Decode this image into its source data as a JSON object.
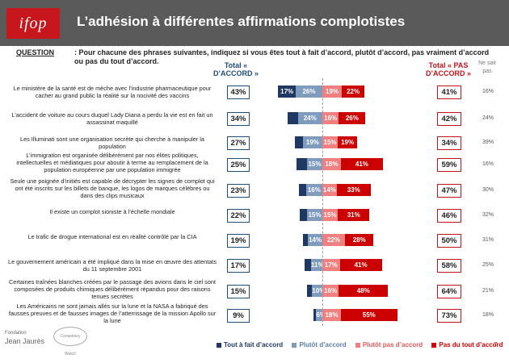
{
  "header": {
    "logo": "ifop",
    "title": "L’adhésion à différentes affirmations complotistes"
  },
  "question": {
    "label": "QUESTION",
    "text": ": Pour chacune des phrases suivantes, indiquez si vous êtes tout à fait d’accord, plutôt d’accord, pas vraiment d’accord ou pas du tout d’accord."
  },
  "columns": {
    "total_accord": "Total « D’ACCORD »",
    "total_pas": "Total « PAS D’ACCORD »",
    "nsp": "Ne sait pas"
  },
  "colors": {
    "tout_accord": "#1f3864",
    "plutot_accord": "#7f9bbd",
    "plutot_pas": "#f08080",
    "pas_du_tout": "#cc0000"
  },
  "chart_data": {
    "type": "bar",
    "orientation": "horizontal-diverging",
    "series": [
      {
        "name": "Tout à fait d’accord",
        "values": [
          17,
          10,
          8,
          10,
          7,
          7,
          5,
          6,
          5,
          3
        ]
      },
      {
        "name": "Plutôt d’accord",
        "values": [
          26,
          24,
          19,
          15,
          16,
          15,
          14,
          11,
          10,
          6
        ]
      },
      {
        "name": "Plutôt pas d’accord",
        "values": [
          19,
          16,
          15,
          18,
          14,
          15,
          22,
          17,
          16,
          18
        ]
      },
      {
        "name": "Pas du tout d’accord",
        "values": [
          22,
          26,
          19,
          41,
          33,
          31,
          28,
          41,
          48,
          55
        ]
      }
    ],
    "categories": [
      "Le ministère de la santé est de mèche avec l’industrie pharmaceutique pour cacher au grand public la réalité sur la nocivité des vaccins",
      "L’accident de voiture au cours duquel Lady Diana a perdu la vie est en fait un assassinat maquillé",
      "Les Illuminati sont une organisation secrète qui cherche à manipuler la population",
      "L’immigration est organisée délibérément par nos élites politiques, intellectuelles et médiatiques pour aboutir à terme au remplacement de la population européenne par une population immigrée",
      "Seule une poignée d’initiés est capable de décrypter les signes de complot qui ont été inscrits sur les billets de banque, les logos de marques célèbres ou dans des clips musicaux",
      "Il existe un complot sioniste à l’échelle mondiale",
      "Le trafic de drogue international est en réalité contrôlé par la CIA",
      "Le gouvernement américain a été impliqué dans la mise en œuvre des attentats du 11 septembre 2001",
      "Certaines traînées blanches créées par le passage des avions dans le ciel sont composées de produits chimiques délibérément répandus pour des raisons tenues secrètes",
      "Les Américains ne sont jamais allés sur la lune et la NASA a fabriqué des fausses preuves et de fausses images de l’atterrissage de la mission Apollo sur la lune"
    ],
    "total_accord": [
      "43%",
      "34%",
      "27%",
      "25%",
      "23%",
      "22%",
      "19%",
      "17%",
      "15%",
      "9%"
    ],
    "total_pas_accord": [
      "41%",
      "42%",
      "34%",
      "59%",
      "47%",
      "46%",
      "50%",
      "58%",
      "64%",
      "73%"
    ],
    "ne_sait_pas": [
      "16%",
      "24%",
      "39%",
      "16%",
      "30%",
      "32%",
      "31%",
      "25%",
      "21%",
      "18%"
    ]
  },
  "footer": {
    "org": "Jean Jaurès",
    "org_small": "Fondation",
    "badge": "Conspiracy Watch",
    "page": "7"
  }
}
